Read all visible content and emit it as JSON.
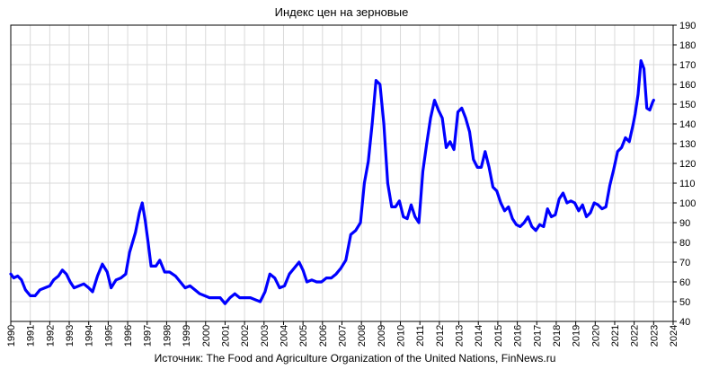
{
  "chart_data": {
    "type": "line",
    "title": "Индекс цен на зерновые",
    "source": "Источник: The Food and Agriculture Organization of the United Nations, FinNews.ru",
    "x_ticks": [
      "1990",
      "1991",
      "1992",
      "1993",
      "1994",
      "1995",
      "1996",
      "1997",
      "1998",
      "1999",
      "2000",
      "2001",
      "2002",
      "2003",
      "2004",
      "2005",
      "2006",
      "2007",
      "2008",
      "2009",
      "2010",
      "2011",
      "2012",
      "2013",
      "2014",
      "2015",
      "2016",
      "2017",
      "2018",
      "2019",
      "2020",
      "2021",
      "2022",
      "2023",
      "2024"
    ],
    "y_ticks": [
      "40",
      "50",
      "60",
      "70",
      "80",
      "90",
      "100",
      "110",
      "120",
      "130",
      "140",
      "150",
      "160",
      "170",
      "180",
      "190"
    ],
    "xlim": [
      1990,
      2024
    ],
    "ylim": [
      40,
      190
    ],
    "y_axis_side": "right",
    "grid": true,
    "color": "#0000ff",
    "series": [
      {
        "points": [
          [
            1990.0,
            64
          ],
          [
            1990.15,
            62
          ],
          [
            1990.35,
            63
          ],
          [
            1990.55,
            61
          ],
          [
            1990.75,
            56
          ],
          [
            1991.0,
            53
          ],
          [
            1991.25,
            53
          ],
          [
            1991.5,
            56
          ],
          [
            1991.75,
            57
          ],
          [
            1992.0,
            58
          ],
          [
            1992.2,
            61
          ],
          [
            1992.45,
            63
          ],
          [
            1992.65,
            66
          ],
          [
            1992.85,
            64
          ],
          [
            1993.05,
            60
          ],
          [
            1993.25,
            57
          ],
          [
            1993.5,
            58
          ],
          [
            1993.75,
            59
          ],
          [
            1994.0,
            57
          ],
          [
            1994.2,
            55
          ],
          [
            1994.45,
            63
          ],
          [
            1994.7,
            69
          ],
          [
            1994.95,
            65
          ],
          [
            1995.15,
            57
          ],
          [
            1995.4,
            61
          ],
          [
            1995.65,
            62
          ],
          [
            1995.9,
            64
          ],
          [
            1996.1,
            75
          ],
          [
            1996.4,
            85
          ],
          [
            1996.6,
            95
          ],
          [
            1996.75,
            100
          ],
          [
            1996.9,
            91
          ],
          [
            1997.05,
            80
          ],
          [
            1997.2,
            68
          ],
          [
            1997.45,
            68
          ],
          [
            1997.65,
            71
          ],
          [
            1997.9,
            65
          ],
          [
            1998.15,
            65
          ],
          [
            1998.45,
            63
          ],
          [
            1998.7,
            60
          ],
          [
            1998.95,
            57
          ],
          [
            1999.2,
            58
          ],
          [
            1999.45,
            56
          ],
          [
            1999.7,
            54
          ],
          [
            1999.95,
            53
          ],
          [
            2000.2,
            52
          ],
          [
            2000.45,
            52
          ],
          [
            2000.75,
            52
          ],
          [
            2001.0,
            49
          ],
          [
            2001.25,
            52
          ],
          [
            2001.5,
            54
          ],
          [
            2001.75,
            52
          ],
          [
            2002.0,
            52
          ],
          [
            2002.3,
            52
          ],
          [
            2002.55,
            51
          ],
          [
            2002.8,
            50
          ],
          [
            2003.05,
            55
          ],
          [
            2003.3,
            64
          ],
          [
            2003.55,
            62
          ],
          [
            2003.8,
            57
          ],
          [
            2004.05,
            58
          ],
          [
            2004.3,
            64
          ],
          [
            2004.55,
            67
          ],
          [
            2004.8,
            70
          ],
          [
            2005.0,
            66
          ],
          [
            2005.2,
            60
          ],
          [
            2005.45,
            61
          ],
          [
            2005.7,
            60
          ],
          [
            2005.95,
            60
          ],
          [
            2006.2,
            62
          ],
          [
            2006.45,
            62
          ],
          [
            2006.7,
            64
          ],
          [
            2006.95,
            67
          ],
          [
            2007.2,
            71
          ],
          [
            2007.45,
            84
          ],
          [
            2007.7,
            86
          ],
          [
            2007.95,
            90
          ],
          [
            2008.15,
            110
          ],
          [
            2008.35,
            121
          ],
          [
            2008.55,
            140
          ],
          [
            2008.75,
            162
          ],
          [
            2008.95,
            160
          ],
          [
            2009.15,
            140
          ],
          [
            2009.35,
            110
          ],
          [
            2009.55,
            98
          ],
          [
            2009.75,
            98
          ],
          [
            2009.95,
            101
          ],
          [
            2010.15,
            93
          ],
          [
            2010.35,
            92
          ],
          [
            2010.55,
            99
          ],
          [
            2010.75,
            93
          ],
          [
            2010.95,
            90
          ],
          [
            2011.15,
            116
          ],
          [
            2011.35,
            130
          ],
          [
            2011.55,
            143
          ],
          [
            2011.75,
            152
          ],
          [
            2011.95,
            147
          ],
          [
            2012.15,
            143
          ],
          [
            2012.35,
            128
          ],
          [
            2012.55,
            131
          ],
          [
            2012.75,
            127
          ],
          [
            2012.95,
            146
          ],
          [
            2013.15,
            148
          ],
          [
            2013.35,
            143
          ],
          [
            2013.55,
            136
          ],
          [
            2013.75,
            122
          ],
          [
            2013.95,
            118
          ],
          [
            2014.15,
            118
          ],
          [
            2014.35,
            126
          ],
          [
            2014.55,
            118
          ],
          [
            2014.75,
            108
          ],
          [
            2014.95,
            106
          ],
          [
            2015.15,
            100
          ],
          [
            2015.35,
            96
          ],
          [
            2015.55,
            98
          ],
          [
            2015.75,
            92
          ],
          [
            2015.95,
            89
          ],
          [
            2016.15,
            88
          ],
          [
            2016.35,
            90
          ],
          [
            2016.55,
            93
          ],
          [
            2016.75,
            88
          ],
          [
            2016.95,
            86
          ],
          [
            2017.15,
            89
          ],
          [
            2017.35,
            88
          ],
          [
            2017.55,
            97
          ],
          [
            2017.75,
            93
          ],
          [
            2017.95,
            94
          ],
          [
            2018.15,
            102
          ],
          [
            2018.35,
            105
          ],
          [
            2018.55,
            100
          ],
          [
            2018.75,
            101
          ],
          [
            2018.95,
            100
          ],
          [
            2019.15,
            96
          ],
          [
            2019.35,
            99
          ],
          [
            2019.55,
            93
          ],
          [
            2019.75,
            95
          ],
          [
            2019.95,
            100
          ],
          [
            2020.15,
            99
          ],
          [
            2020.35,
            97
          ],
          [
            2020.55,
            98
          ],
          [
            2020.75,
            109
          ],
          [
            2020.95,
            117
          ],
          [
            2021.15,
            126
          ],
          [
            2021.35,
            128
          ],
          [
            2021.55,
            133
          ],
          [
            2021.75,
            131
          ],
          [
            2021.95,
            140
          ],
          [
            2022.05,
            145
          ],
          [
            2022.2,
            155
          ],
          [
            2022.35,
            172
          ],
          [
            2022.5,
            168
          ],
          [
            2022.65,
            148
          ],
          [
            2022.8,
            147
          ],
          [
            2022.95,
            151
          ],
          [
            2023.0,
            152
          ]
        ]
      }
    ]
  }
}
